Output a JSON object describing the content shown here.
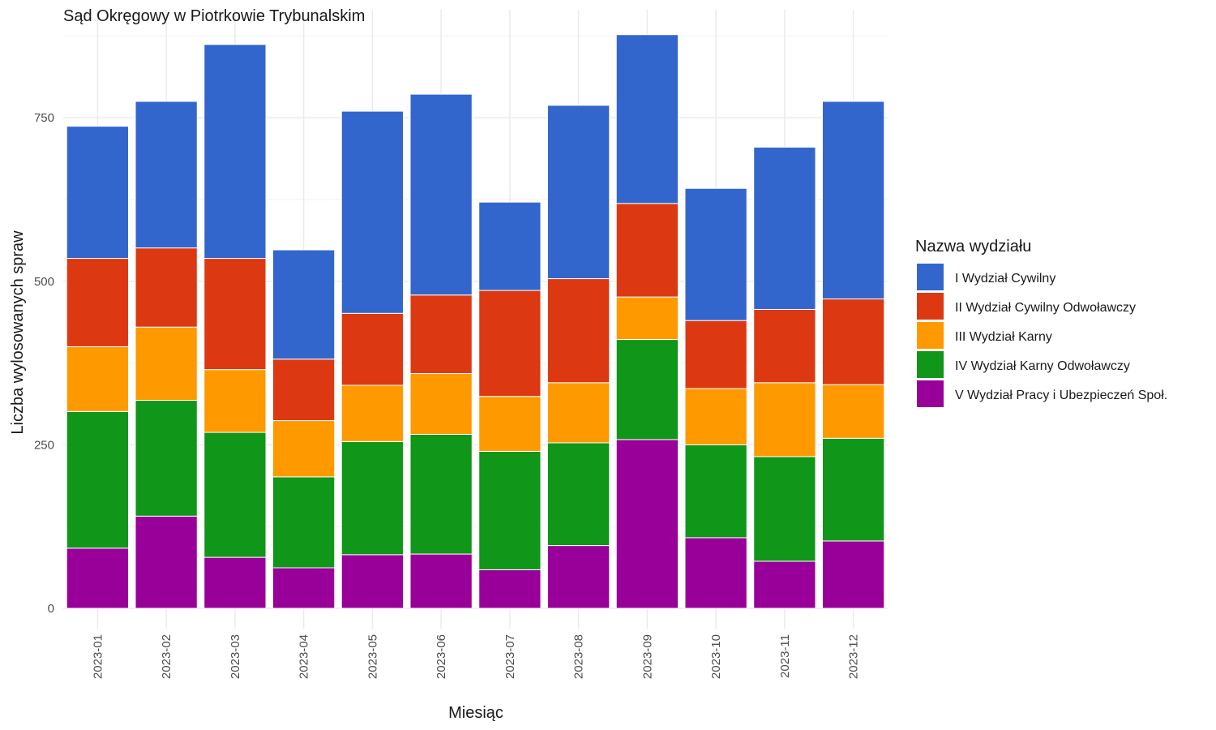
{
  "chart_data": {
    "type": "bar",
    "stacked": true,
    "title": "Sąd Okręgowy w Piotrkowie Trybunalskim",
    "xlabel": "Miesiąc",
    "ylabel": "Liczba wylosowanych spraw",
    "ylim": [
      0,
      900
    ],
    "y_ticks": [
      "0",
      "250",
      "500",
      "750"
    ],
    "grid": true,
    "legend_position": "right",
    "legend_title": "Nazwa wydziału",
    "categories": [
      "2023-01",
      "2023-02",
      "2023-03",
      "2023-04",
      "2023-05",
      "2023-06",
      "2023-07",
      "2023-08",
      "2023-09",
      "2023-10",
      "2023-11",
      "2023-12"
    ],
    "series": [
      {
        "name": "V Wydział Pracy i Ubezpieczeń Społ.",
        "color": "#990099",
        "values": [
          92,
          141,
          78,
          62,
          82,
          83,
          59,
          96,
          258,
          108,
          72,
          103
        ]
      },
      {
        "name": "IV Wydział Karny Odwoławczy",
        "color": "#109618",
        "values": [
          209,
          177,
          191,
          139,
          173,
          183,
          181,
          157,
          153,
          142,
          160,
          157
        ]
      },
      {
        "name": "III Wydział Karny",
        "color": "#ff9900",
        "values": [
          99,
          112,
          96,
          86,
          86,
          93,
          84,
          92,
          65,
          86,
          113,
          82
        ]
      },
      {
        "name": "II Wydział Cywilny Odwoławczy",
        "color": "#dc3912",
        "values": [
          135,
          121,
          170,
          94,
          110,
          120,
          162,
          159,
          143,
          104,
          112,
          131
        ]
      },
      {
        "name": "I Wydział Cywilny",
        "color": "#3366cc",
        "values": [
          202,
          224,
          327,
          167,
          309,
          307,
          135,
          265,
          258,
          202,
          248,
          302
        ]
      }
    ],
    "legend_order": [
      "I Wydział Cywilny",
      "II Wydział Cywilny Odwoławczy",
      "III Wydział Karny",
      "IV Wydział Karny Odwoławczy",
      "V Wydział Pracy i Ubezpieczeń Społ."
    ]
  }
}
